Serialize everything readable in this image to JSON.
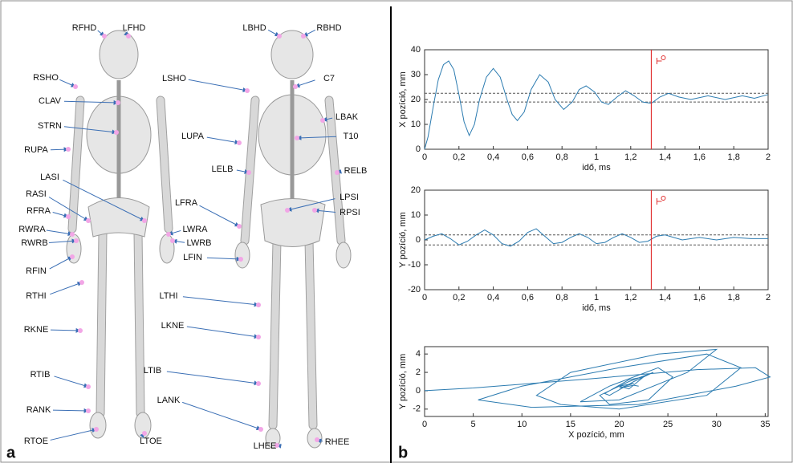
{
  "panel_a": {
    "label": "a",
    "markers": [
      "RFHD",
      "LFHD",
      "RSHO",
      "LSHO",
      "CLAV",
      "STRN",
      "LUPA",
      "RUPA",
      "LASI",
      "RASI",
      "LFRA",
      "RFRA",
      "RWRA",
      "LWRA",
      "RWRB",
      "LWRB",
      "LFIN",
      "RFIN",
      "RTHI",
      "LTHI",
      "RKNE",
      "LKNE",
      "RTIB",
      "LTIB",
      "RANK",
      "LANK",
      "RTOE",
      "LTOE",
      "LBHD",
      "RBHD",
      "C7",
      "LBAK",
      "T10",
      "LELB",
      "RELB",
      "LPSI",
      "RPSI",
      "LHEE",
      "RHEE"
    ]
  },
  "panel_b": {
    "label": "b"
  },
  "chart_data": [
    {
      "type": "line",
      "xlabel": "idő, ms",
      "ylabel": "X pozíció, mm",
      "xlim": [
        0,
        2
      ],
      "ylim": [
        0,
        40
      ],
      "xticks": [
        0,
        {
          "value": 0.2,
          "label": "0,2"
        },
        {
          "value": 0.4,
          "label": "0,4"
        },
        {
          "value": 0.6,
          "label": "0,6"
        },
        {
          "value": 0.8,
          "label": "0,8"
        },
        1,
        {
          "value": 1.2,
          "label": "1,2"
        },
        {
          "value": 1.4,
          "label": "1,4"
        },
        {
          "value": 1.6,
          "label": "1,6"
        },
        {
          "value": 1.8,
          "label": "1,8"
        },
        2
      ],
      "yticks": [
        0,
        10,
        20,
        30,
        40
      ],
      "hlines": [
        22.5,
        19
      ],
      "vline": 1.32,
      "series": [
        {
          "color": "#2b7bb0",
          "x": [
            0,
            0.02,
            0.05,
            0.08,
            0.11,
            0.14,
            0.17,
            0.2,
            0.23,
            0.26,
            0.29,
            0.32,
            0.36,
            0.4,
            0.44,
            0.48,
            0.51,
            0.54,
            0.58,
            0.62,
            0.67,
            0.72,
            0.76,
            0.81,
            0.86,
            0.9,
            0.94,
            0.99,
            1.03,
            1.07,
            1.12,
            1.17,
            1.22,
            1.27,
            1.32,
            1.37,
            1.42,
            1.48,
            1.55,
            1.65,
            1.75,
            1.85,
            1.92,
            2.0
          ],
          "values": [
            0,
            5,
            17,
            28,
            34,
            35.5,
            32,
            22,
            11,
            5.5,
            10,
            20,
            29,
            32.5,
            29,
            20,
            14,
            11.5,
            15,
            24,
            30,
            27,
            20,
            16,
            19,
            24,
            25.5,
            23,
            19,
            18,
            21,
            23.5,
            21.5,
            19,
            18.5,
            21,
            22.5,
            21,
            20,
            21.5,
            20,
            21.5,
            20.5,
            22
          ]
        }
      ]
    },
    {
      "type": "line",
      "xlabel": "idő, ms",
      "ylabel": "Y pozíció, mm",
      "xlim": [
        0,
        2
      ],
      "ylim": [
        -20,
        20
      ],
      "xticks": [
        0,
        {
          "value": 0.2,
          "label": "0,2"
        },
        {
          "value": 0.4,
          "label": "0,4"
        },
        {
          "value": 0.6,
          "label": "0,6"
        },
        {
          "value": 0.8,
          "label": "0,8"
        },
        1,
        {
          "value": 1.2,
          "label": "1,2"
        },
        {
          "value": 1.4,
          "label": "1,4"
        },
        {
          "value": 1.6,
          "label": "1,6"
        },
        {
          "value": 1.8,
          "label": "1,8"
        },
        2
      ],
      "yticks": [
        -20,
        -10,
        0,
        10,
        20
      ],
      "hlines": [
        2,
        -2
      ],
      "vline": 1.32,
      "series": [
        {
          "color": "#2b7bb0",
          "x": [
            0,
            0.05,
            0.1,
            0.15,
            0.2,
            0.25,
            0.3,
            0.35,
            0.4,
            0.45,
            0.5,
            0.55,
            0.6,
            0.65,
            0.7,
            0.75,
            0.8,
            0.85,
            0.9,
            0.95,
            1.0,
            1.05,
            1.1,
            1.15,
            1.2,
            1.25,
            1.3,
            1.35,
            1.4,
            1.5,
            1.6,
            1.7,
            1.8,
            1.9,
            2.0
          ],
          "values": [
            0,
            1.5,
            2.5,
            0.5,
            -2,
            -0.5,
            2,
            4,
            2,
            -1.5,
            -2.5,
            -0.5,
            3,
            4.5,
            1.5,
            -1.5,
            -1,
            1,
            2.5,
            1,
            -1.5,
            -1,
            1,
            2.5,
            1,
            -1,
            -0.5,
            1.5,
            2,
            0,
            1,
            0,
            1,
            0.5,
            0.5
          ]
        }
      ]
    },
    {
      "type": "line",
      "xlabel": "X pozíció, mm",
      "ylabel": "Y pozíció, mm",
      "xlim": [
        0,
        35.3
      ],
      "ylim": [
        -2.8,
        4.8
      ],
      "xticks": [
        0,
        5,
        10,
        15,
        20,
        25,
        30,
        35
      ],
      "yticks": [
        -2,
        0,
        2,
        4
      ],
      "series": [
        {
          "color": "#2b7bb0",
          "x": [
            0,
            5,
            17,
            28,
            34,
            35.5,
            32,
            22,
            11,
            5.5,
            10,
            20,
            29,
            32.5,
            29,
            20,
            14,
            11.5,
            15,
            24,
            30,
            27,
            20,
            16,
            19,
            24,
            25.5,
            23,
            19,
            18,
            21,
            23.5,
            21.5,
            19,
            18.5,
            21,
            22.5,
            21,
            20,
            21.5,
            20,
            21.5,
            22
          ],
          "values": [
            0,
            0.3,
            1.3,
            2.3,
            2.5,
            1.5,
            0.5,
            -1.5,
            -1.8,
            -1,
            0.5,
            2.5,
            4,
            2.5,
            -0.5,
            -2,
            -1.5,
            -0.5,
            2,
            4,
            4.5,
            2,
            -1,
            -1.2,
            0.5,
            2.5,
            1.5,
            -1,
            -1.5,
            -0.5,
            1,
            2,
            1,
            -0.5,
            -0.3,
            1.2,
            1.5,
            0.2,
            0.5,
            0.8,
            0.3,
            0.6,
            0.5
          ]
        }
      ]
    }
  ]
}
